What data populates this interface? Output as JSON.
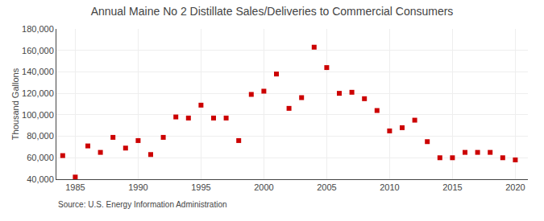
{
  "chart_data": {
    "type": "scatter",
    "title": "Annual Maine No 2 Distillate Sales/Deliveries to Commercial Consumers",
    "ylabel": "Thousand Gallons",
    "annotation": "Source: U.S. Energy Information Administration",
    "x": [
      1984,
      1985,
      1986,
      1987,
      1988,
      1989,
      1990,
      1991,
      1992,
      1993,
      1994,
      1995,
      1996,
      1997,
      1998,
      1999,
      2000,
      2001,
      2002,
      2003,
      2004,
      2005,
      2006,
      2007,
      2008,
      2009,
      2010,
      2011,
      2012,
      2013,
      2014,
      2015,
      2016,
      2017,
      2018,
      2019,
      2020
    ],
    "values": [
      62000,
      42000,
      71000,
      65000,
      79000,
      69000,
      76000,
      63000,
      79000,
      98000,
      97000,
      109000,
      97000,
      97000,
      76000,
      119000,
      122000,
      138000,
      106000,
      116000,
      163000,
      144000,
      120000,
      121000,
      115000,
      104000,
      85000,
      88000,
      95000,
      75000,
      60000,
      60000,
      65000,
      65000,
      65000,
      60000,
      58000
    ],
    "color": "#cc0000",
    "marker": "square",
    "xlim": [
      1983.5,
      2021
    ],
    "xticks": [
      1985,
      1990,
      1995,
      2000,
      2005,
      2010,
      2015,
      2020
    ],
    "ylim": [
      40000,
      180000
    ],
    "yticks": [
      {
        "value": 40000,
        "label": "40,000"
      },
      {
        "value": 60000,
        "label": "60,000"
      },
      {
        "value": 80000,
        "label": "80,000"
      },
      {
        "value": 100000,
        "label": "100,000"
      },
      {
        "value": 120000,
        "label": "120,000"
      },
      {
        "value": 140000,
        "label": "140,000"
      },
      {
        "value": 160000,
        "label": "160,000"
      },
      {
        "value": 180000,
        "label": "180,000"
      }
    ],
    "grid": true
  }
}
